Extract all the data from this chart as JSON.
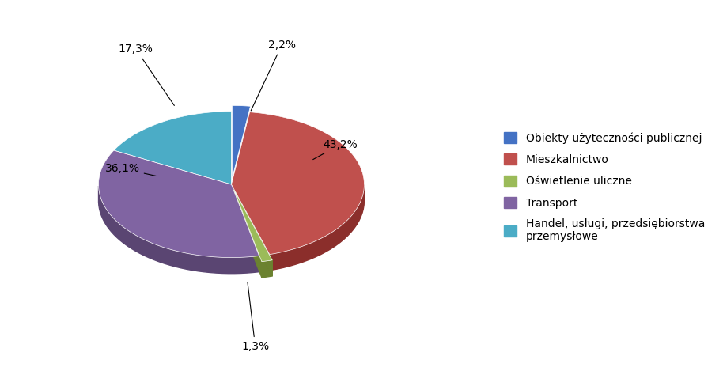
{
  "labels": [
    "Obiekty użyteczności publicznej",
    "Mieszkalnictwo",
    "Oświetlenie uliczne",
    "Transport",
    "Handel, usługi, przedsiębiorstwa\nprzemysłowe"
  ],
  "values": [
    2.2,
    43.2,
    1.3,
    36.1,
    17.3
  ],
  "colors": [
    "#4472C4",
    "#C0504D",
    "#9BBB59",
    "#8064A2",
    "#4BACC6"
  ],
  "colors_dark": [
    "#2E4E8A",
    "#8B2E2B",
    "#6B8230",
    "#5A4572",
    "#2E7A8A"
  ],
  "explode": [
    0.08,
    0.0,
    0.08,
    0.0,
    0.0
  ],
  "pct_labels": [
    "2,2%",
    "43,2%",
    "1,3%",
    "36,1%",
    "17,3%"
  ],
  "background_color": "#ffffff",
  "startangle": 90,
  "depth": 0.12,
  "aspect_ratio": 0.55
}
